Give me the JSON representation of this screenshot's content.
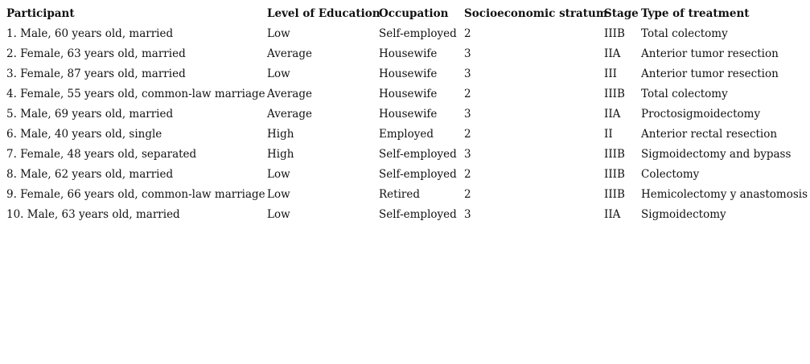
{
  "table": {
    "header": [
      "Participant",
      "Level of Education",
      "Occupation",
      "Socioeconomic stratum",
      "Stage",
      "Type of treatment"
    ],
    "rows": [
      [
        "1. Male, 60 years old, married",
        "Low",
        "Self-employed",
        2,
        "IIIB",
        "Total colectomy"
      ],
      [
        "2. Female, 63 years old, married",
        "Average",
        "Housewife",
        3,
        "IIA",
        "Anterior tumor resection"
      ],
      [
        "3. Female, 87 years old, married",
        "Low",
        "Housewife",
        3,
        "III",
        "Anterior tumor resection"
      ],
      [
        "4. Female, 55 years old, common-law marriage",
        "Average",
        "Housewife",
        2,
        "IIIB",
        "Total colectomy"
      ],
      [
        "5. Male, 69 years old, married",
        "Average",
        "Housewife",
        3,
        "IIA",
        "Proctosigmoidectomy"
      ],
      [
        "6. Male, 40 years old, single",
        "High",
        "Employed",
        2,
        "II",
        "Anterior rectal resection"
      ],
      [
        "7. Female, 48 years old, separated",
        "High",
        "Self-employed",
        3,
        "IIIB",
        "Sigmoidectomy and bypass"
      ],
      [
        "8. Male, 62 years old, married",
        "Low",
        "Self-employed",
        2,
        "IIIB",
        "Colectomy"
      ],
      [
        "9. Female, 66 years old, common-law marriage",
        "Low",
        "Retired",
        2,
        "IIIB",
        "Hemicolectomy y anastomosis"
      ],
      [
        "10. Male, 63 years old, married",
        "Low",
        "Self-employed",
        3,
        "IIA",
        "Sigmoidectomy"
      ]
    ]
  }
}
